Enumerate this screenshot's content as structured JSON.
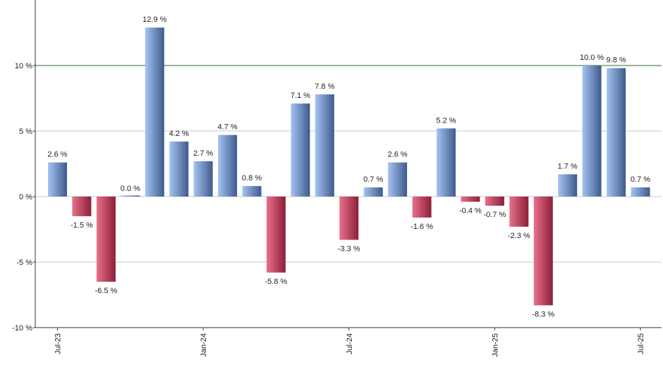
{
  "chart_data": {
    "type": "bar",
    "title": "",
    "xlabel": "",
    "ylabel": "",
    "ylim": [
      -10,
      15
    ],
    "y_ticks": [
      -10,
      -5,
      0,
      5,
      10
    ],
    "y_tick_labels": [
      "-10 %",
      "-5 %",
      "0 %",
      "5 %",
      "10 %"
    ],
    "grid": true,
    "reference_line": {
      "value": 10,
      "color": "#2e6b2e"
    },
    "categories": [
      "2023-07",
      "2023-08",
      "2023-09",
      "2023-10",
      "2023-11",
      "2023-12",
      "2024-01",
      "2024-02",
      "2024-03",
      "2024-04",
      "2024-05",
      "2024-06",
      "2024-07",
      "2024-08",
      "2024-09",
      "2024-10",
      "2024-11",
      "2024-12",
      "2025-01",
      "2025-02",
      "2025-03",
      "2025-04",
      "2025-05",
      "2025-06",
      "2025-07"
    ],
    "values": [
      2.6,
      -1.5,
      -6.5,
      0.0,
      12.9,
      4.2,
      2.7,
      4.7,
      0.8,
      -5.8,
      7.1,
      7.8,
      -3.3,
      0.7,
      2.6,
      -1.6,
      5.2,
      -0.4,
      -0.7,
      -2.3,
      -8.3,
      1.7,
      10.0,
      9.8,
      0.7
    ],
    "value_labels": [
      "2.6 %",
      "-1.5 %",
      "-6.5 %",
      "0.0 %",
      "12.9 %",
      "4.2 %",
      "2.7 %",
      "4.7 %",
      "0.8 %",
      "-5.8 %",
      "7.1 %",
      "7.8 %",
      "-3.3 %",
      "0.7 %",
      "2.6 %",
      "-1.6 %",
      "5.2 %",
      "-0.4 %",
      "-0.7 %",
      "-2.3 %",
      "-8.3 %",
      "1.7 %",
      "10.0 %",
      "9.8 %",
      "0.7 %"
    ],
    "x_ticks": [
      {
        "index": 0,
        "label": "Jul-23"
      },
      {
        "index": 6,
        "label": "Jan-24"
      },
      {
        "index": 12,
        "label": "Jul-24"
      },
      {
        "index": 18,
        "label": "Jan-25"
      },
      {
        "index": 24,
        "label": "Jul-25"
      }
    ],
    "colors": {
      "positive_light": "#a6c4f2",
      "positive_dark": "#3d5a8c",
      "negative_light": "#e8708a",
      "negative_dark": "#8c1f3a",
      "grid": "#c8c8c8",
      "axis": "#333333"
    }
  }
}
